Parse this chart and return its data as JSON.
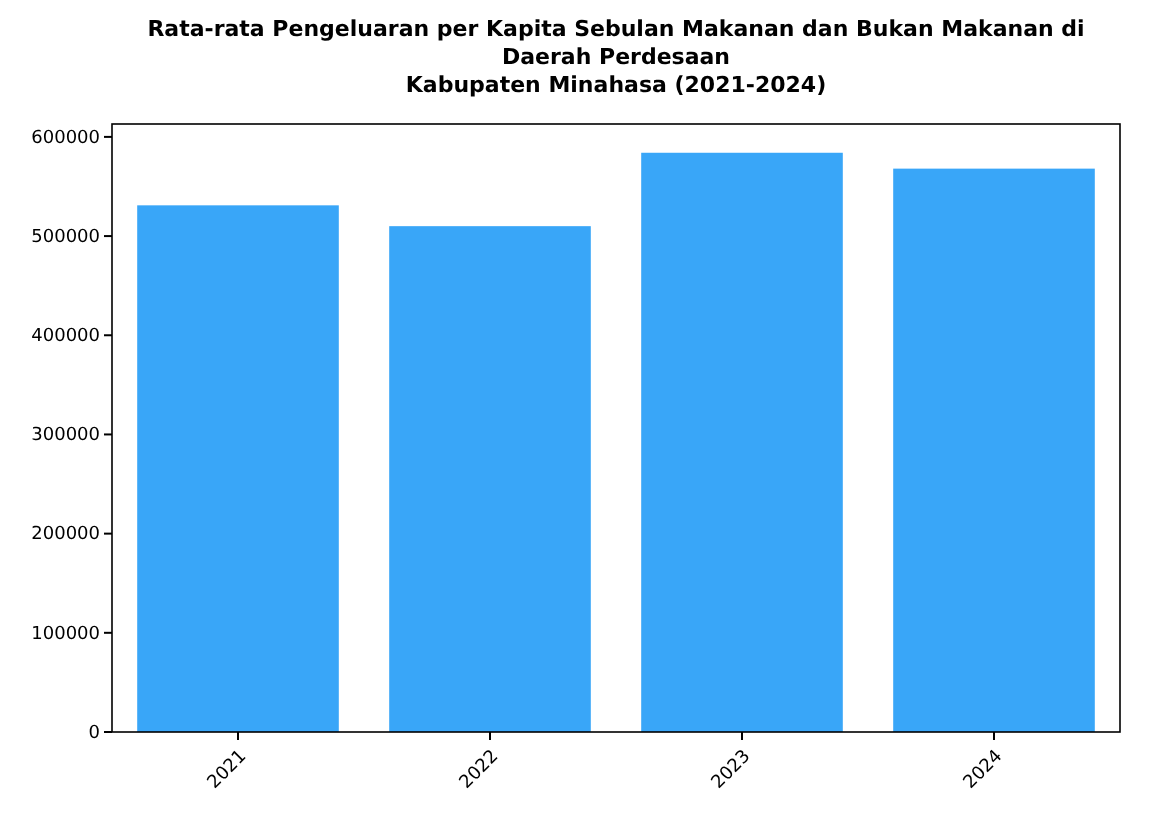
{
  "chart_data": {
    "type": "bar",
    "title": "Rata-rata Pengeluaran per Kapita Sebulan Makanan dan Bukan Makanan di Daerah Perdesaan\nKabupaten Minahasa (2021-2024)",
    "categories": [
      "2021",
      "2022",
      "2023",
      "2024"
    ],
    "values": [
      531000,
      510000,
      584000,
      568000
    ],
    "color": "#39a6f8",
    "ylim": [
      0,
      613000
    ],
    "yticks": [
      0,
      100000,
      200000,
      300000,
      400000,
      500000,
      600000
    ],
    "grid": false
  }
}
